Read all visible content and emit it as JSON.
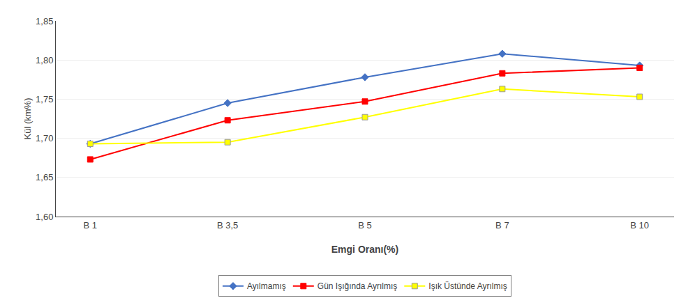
{
  "chart_data": {
    "type": "line",
    "categories": [
      "B 1",
      "B 3,5",
      "B 5",
      "B 7",
      "B 10"
    ],
    "series": [
      {
        "name": "Ayılmamış",
        "color": "#4472C4",
        "marker": "diamond",
        "values": [
          1.693,
          1.745,
          1.778,
          1.808,
          1.793
        ]
      },
      {
        "name": "Gün Işığında Ayrılmış",
        "color": "#FF0000",
        "marker": "square",
        "values": [
          1.673,
          1.723,
          1.747,
          1.783,
          1.79
        ]
      },
      {
        "name": "Işık Üstünde Ayrılmış",
        "color": "#FFFF00",
        "marker": "square",
        "values": [
          1.693,
          1.695,
          1.727,
          1.763,
          1.753
        ]
      }
    ],
    "xlabel": "Emgi Oranı(%)",
    "ylabel": "Kül (km%)",
    "ylim": [
      1.6,
      1.85
    ],
    "yticks": [
      {
        "value": 1.6,
        "label": "1,60"
      },
      {
        "value": 1.65,
        "label": "1,65"
      },
      {
        "value": 1.7,
        "label": "1,70"
      },
      {
        "value": 1.75,
        "label": "1,75"
      },
      {
        "value": 1.8,
        "label": "1,80"
      },
      {
        "value": 1.85,
        "label": "1,85"
      }
    ],
    "grid": "y",
    "legend": "bottom"
  }
}
